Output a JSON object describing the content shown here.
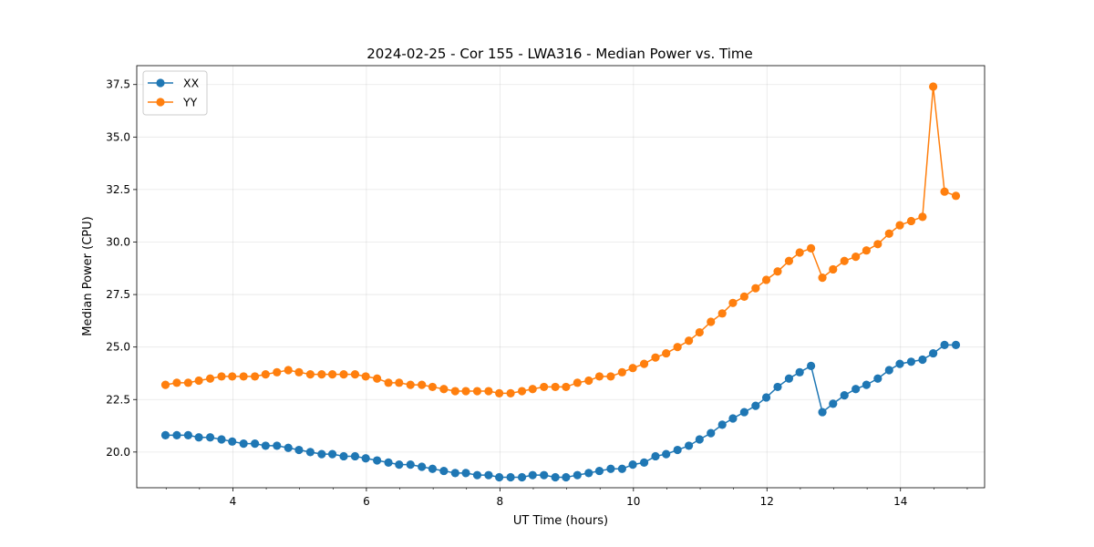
{
  "chart_data": {
    "type": "line",
    "title": "2024-02-25 - Cor 155 - LWA316 - Median Power vs. Time",
    "xlabel": "UT Time (hours)",
    "ylabel": "Median Power (CPU)",
    "xlim": [
      2.56,
      15.26
    ],
    "ylim": [
      18.3,
      38.4
    ],
    "xticks": [
      4,
      6,
      8,
      10,
      12,
      14
    ],
    "xtick_labels": [
      "4",
      "6",
      "8",
      "10",
      "12",
      "14"
    ],
    "yticks": [
      20.0,
      22.5,
      25.0,
      27.5,
      30.0,
      32.5,
      35.0,
      37.5
    ],
    "ytick_labels": [
      "20.0",
      "22.5",
      "25.0",
      "27.5",
      "30.0",
      "32.5",
      "35.0",
      "37.5"
    ],
    "grid": true,
    "legend_position": "top-left",
    "marker": "circle",
    "x": [
      2.99,
      3.16,
      3.33,
      3.49,
      3.66,
      3.83,
      3.99,
      4.16,
      4.33,
      4.49,
      4.66,
      4.83,
      4.99,
      5.16,
      5.33,
      5.49,
      5.66,
      5.83,
      5.99,
      6.16,
      6.33,
      6.49,
      6.66,
      6.83,
      6.99,
      7.16,
      7.33,
      7.49,
      7.66,
      7.83,
      7.99,
      8.16,
      8.33,
      8.49,
      8.66,
      8.83,
      8.99,
      9.16,
      9.33,
      9.49,
      9.66,
      9.83,
      9.99,
      10.16,
      10.33,
      10.49,
      10.66,
      10.83,
      10.99,
      11.16,
      11.33,
      11.49,
      11.66,
      11.83,
      11.99,
      12.16,
      12.33,
      12.49,
      12.66,
      12.83,
      12.99,
      13.16,
      13.33,
      13.49,
      13.66,
      13.83,
      13.99,
      14.16,
      14.33,
      14.49,
      14.66,
      14.83
    ],
    "series": [
      {
        "name": "XX",
        "color": "#1f77b4",
        "values": [
          20.8,
          20.8,
          20.8,
          20.7,
          20.7,
          20.6,
          20.5,
          20.4,
          20.4,
          20.3,
          20.3,
          20.2,
          20.1,
          20.0,
          19.9,
          19.9,
          19.8,
          19.8,
          19.7,
          19.6,
          19.5,
          19.4,
          19.4,
          19.3,
          19.2,
          19.1,
          19.0,
          19.0,
          18.9,
          18.9,
          18.8,
          18.8,
          18.8,
          18.9,
          18.9,
          18.8,
          18.8,
          18.9,
          19.0,
          19.1,
          19.2,
          19.2,
          19.4,
          19.5,
          19.8,
          19.9,
          20.1,
          20.3,
          20.6,
          20.9,
          21.3,
          21.6,
          21.9,
          22.2,
          22.6,
          23.1,
          23.5,
          23.8,
          24.1,
          21.9,
          22.3,
          22.7,
          23.0,
          23.2,
          23.5,
          23.9,
          24.2,
          24.3,
          24.4,
          24.7,
          25.1,
          25.1
        ]
      },
      {
        "name": "YY",
        "color": "#ff7f0e",
        "values": [
          23.2,
          23.3,
          23.3,
          23.4,
          23.5,
          23.6,
          23.6,
          23.6,
          23.6,
          23.7,
          23.8,
          23.9,
          23.8,
          23.7,
          23.7,
          23.7,
          23.7,
          23.7,
          23.6,
          23.5,
          23.3,
          23.3,
          23.2,
          23.2,
          23.1,
          23.0,
          22.9,
          22.9,
          22.9,
          22.9,
          22.8,
          22.8,
          22.9,
          23.0,
          23.1,
          23.1,
          23.1,
          23.3,
          23.4,
          23.6,
          23.6,
          23.8,
          24.0,
          24.2,
          24.5,
          24.7,
          25.0,
          25.3,
          25.7,
          26.2,
          26.6,
          27.1,
          27.4,
          27.8,
          28.2,
          28.6,
          29.1,
          29.5,
          29.7,
          28.3,
          28.7,
          29.1,
          29.3,
          29.6,
          29.9,
          30.4,
          30.8,
          31.0,
          31.2,
          37.4,
          32.4,
          32.2
        ]
      }
    ]
  }
}
